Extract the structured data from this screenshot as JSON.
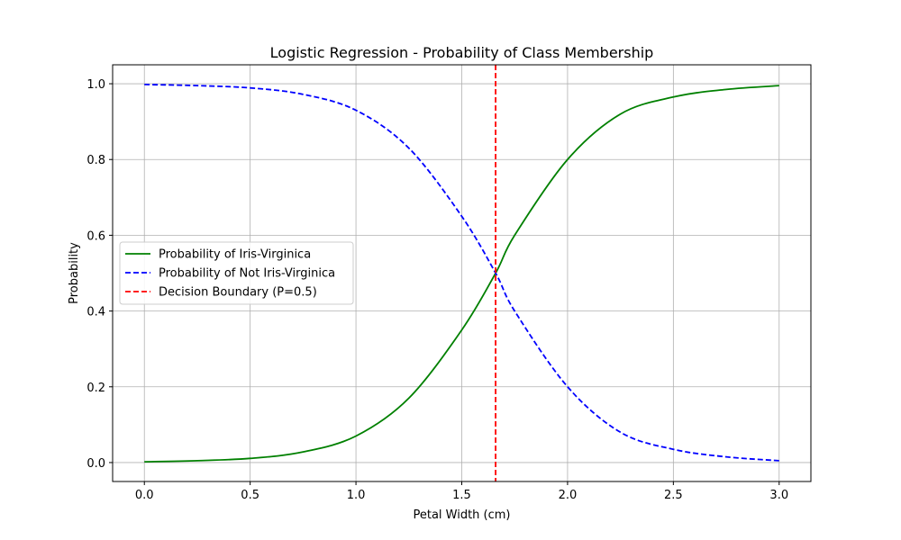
{
  "chart_data": {
    "type": "line",
    "title": "Logistic Regression - Probability of Class Membership",
    "xlabel": "Petal Width (cm)",
    "ylabel": "Probability",
    "xlim": [
      -0.15,
      3.15
    ],
    "ylim": [
      -0.05,
      1.05
    ],
    "grid": true,
    "legend_position": "center-left",
    "xticks": [
      "0.0",
      "0.5",
      "1.0",
      "1.5",
      "2.0",
      "2.5",
      "3.0"
    ],
    "yticks": [
      "0.0",
      "0.2",
      "0.4",
      "0.6",
      "0.8",
      "1.0"
    ],
    "x": [
      0.0,
      0.25,
      0.5,
      0.75,
      1.0,
      1.25,
      1.5,
      1.66,
      1.75,
      2.0,
      2.25,
      2.5,
      2.75,
      3.0
    ],
    "series": [
      {
        "name": "Probability of Iris-Virginica",
        "color": "#008000",
        "style": "solid",
        "values": [
          0.002,
          0.005,
          0.011,
          0.028,
          0.07,
          0.17,
          0.35,
          0.5,
          0.6,
          0.8,
          0.92,
          0.965,
          0.985,
          0.995
        ]
      },
      {
        "name": "Probability of Not Iris-Virginica",
        "color": "#0000ff",
        "style": "dashed",
        "values": [
          0.998,
          0.995,
          0.989,
          0.972,
          0.93,
          0.83,
          0.65,
          0.5,
          0.4,
          0.2,
          0.08,
          0.035,
          0.015,
          0.005
        ]
      }
    ],
    "vlines": [
      {
        "name": "Decision Boundary (P=0.5)",
        "x": 1.66,
        "color": "#ff0000",
        "style": "dashed"
      }
    ]
  }
}
